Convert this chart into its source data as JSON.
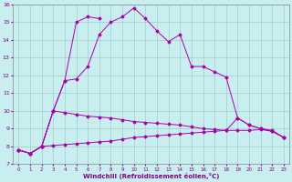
{
  "xlabel": "Windchill (Refroidissement éolien,°C)",
  "x": [
    0,
    1,
    2,
    3,
    4,
    5,
    6,
    7,
    8,
    9,
    10,
    11,
    12,
    13,
    14,
    15,
    16,
    17,
    18,
    19,
    20,
    21,
    22,
    23
  ],
  "line1": [
    7.8,
    7.6,
    8.0,
    10.0,
    11.7,
    11.8,
    12.5,
    14.3,
    15.0,
    15.3,
    15.8,
    15.2,
    14.5,
    13.9,
    14.3,
    12.5,
    12.5,
    12.2,
    11.9,
    9.6,
    9.2,
    9.0,
    8.9,
    8.5
  ],
  "line2": [
    7.8,
    7.6,
    8.0,
    10.0,
    11.7,
    15.0,
    15.3,
    15.2,
    null,
    null,
    null,
    null,
    null,
    null,
    null,
    null,
    null,
    null,
    null,
    null,
    null,
    null,
    null,
    null
  ],
  "line3": [
    7.8,
    7.6,
    8.0,
    10.0,
    9.9,
    9.8,
    9.7,
    9.65,
    9.6,
    9.5,
    9.4,
    9.35,
    9.3,
    9.25,
    9.2,
    9.1,
    9.0,
    8.95,
    8.9,
    9.6,
    9.2,
    9.0,
    8.85,
    8.5
  ],
  "line4": [
    7.8,
    7.6,
    8.0,
    8.05,
    8.1,
    8.15,
    8.2,
    8.25,
    8.3,
    8.4,
    8.5,
    8.55,
    8.6,
    8.65,
    8.7,
    8.75,
    8.8,
    8.85,
    8.9,
    8.9,
    8.9,
    8.95,
    8.85,
    8.5
  ],
  "bg_color": "#c8eef0",
  "grid_color": "#a0cec8",
  "line_color": "#aa00aa",
  "ylim": [
    7,
    16
  ],
  "yticks": [
    7,
    8,
    9,
    10,
    11,
    12,
    13,
    14,
    15,
    16
  ]
}
